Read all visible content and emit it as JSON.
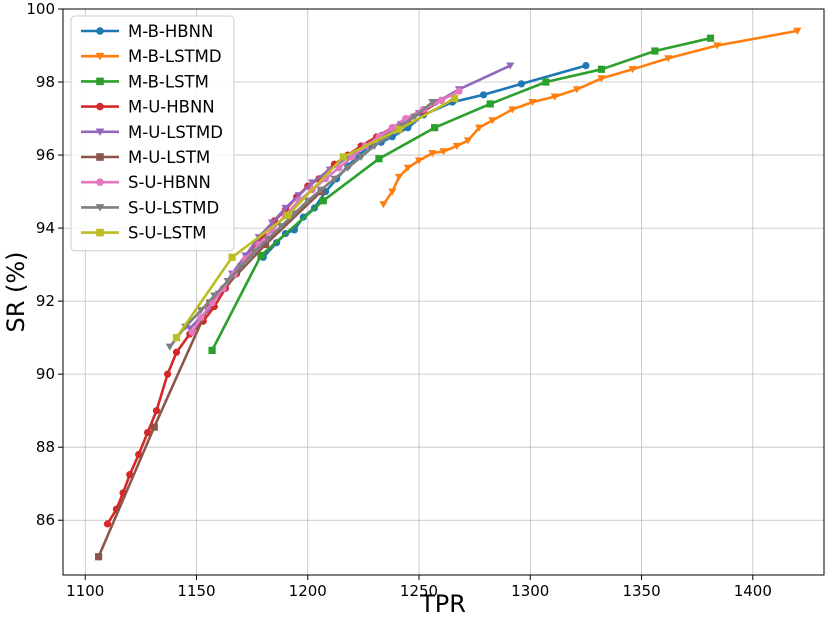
{
  "chart_data": {
    "type": "line",
    "xlabel": "TPR",
    "ylabel": "SR (%)",
    "xlim": [
      1090,
      1432
    ],
    "ylim": [
      84.5,
      100
    ],
    "xticks": [
      1100,
      1150,
      1200,
      1250,
      1300,
      1350,
      1400
    ],
    "yticks": [
      86,
      88,
      90,
      92,
      94,
      96,
      98,
      100
    ],
    "grid": true,
    "legend_position": "top-left",
    "series": [
      {
        "name": "M-B-HBNN",
        "color": "#1f77b4",
        "marker": "circle",
        "x": [
          1180,
          1186,
          1190,
          1194,
          1198,
          1203,
          1208,
          1213,
          1218,
          1223,
          1228,
          1233,
          1238,
          1245,
          1252,
          1265,
          1279,
          1296,
          1325
        ],
        "y": [
          93.2,
          93.6,
          93.85,
          93.95,
          94.3,
          94.55,
          95.0,
          95.35,
          95.7,
          96.0,
          96.25,
          96.35,
          96.5,
          96.75,
          97.1,
          97.45,
          97.65,
          97.95,
          98.45
        ]
      },
      {
        "name": "M-B-LSTMD",
        "color": "#ff7f0e",
        "marker": "triangle-down",
        "x": [
          1234,
          1238,
          1241,
          1245,
          1250,
          1256,
          1261,
          1267,
          1272,
          1277,
          1283,
          1292,
          1301,
          1311,
          1321,
          1332,
          1346,
          1362,
          1384,
          1420
        ],
        "y": [
          94.65,
          95.0,
          95.4,
          95.65,
          95.85,
          96.05,
          96.1,
          96.25,
          96.4,
          96.75,
          96.95,
          97.25,
          97.45,
          97.6,
          97.8,
          98.1,
          98.35,
          98.65,
          99.0,
          99.4
        ]
      },
      {
        "name": "M-B-LSTM",
        "color": "#2ca02c",
        "marker": "square",
        "x": [
          1157,
          1179,
          1207,
          1232,
          1257,
          1282,
          1307,
          1332,
          1356,
          1381
        ],
        "y": [
          90.65,
          93.25,
          94.75,
          95.9,
          96.75,
          97.4,
          98.0,
          98.35,
          98.85,
          99.2
        ]
      },
      {
        "name": "M-U-HBNN",
        "color": "#d62728",
        "marker": "circle",
        "x": [
          1110,
          1114,
          1117,
          1120,
          1124,
          1128,
          1132,
          1137,
          1141,
          1147,
          1153,
          1158,
          1163,
          1168,
          1174,
          1180,
          1185,
          1190,
          1195,
          1200,
          1205,
          1212,
          1218,
          1224,
          1231,
          1238,
          1245,
          1252,
          1260
        ],
        "y": [
          85.9,
          86.3,
          86.75,
          87.25,
          87.8,
          88.4,
          89.0,
          90.0,
          90.6,
          91.1,
          91.45,
          91.85,
          92.35,
          92.75,
          93.3,
          93.8,
          94.2,
          94.5,
          94.85,
          95.15,
          95.35,
          95.75,
          96.0,
          96.25,
          96.5,
          96.75,
          96.95,
          97.2,
          97.5
        ]
      },
      {
        "name": "M-U-LSTMD",
        "color": "#9467bd",
        "marker": "triangle-down",
        "x": [
          1147,
          1155,
          1160,
          1166,
          1172,
          1178,
          1184,
          1190,
          1196,
          1202,
          1210,
          1218,
          1226,
          1234,
          1242,
          1250,
          1258,
          1268,
          1291
        ],
        "y": [
          91.25,
          91.75,
          92.2,
          92.75,
          93.25,
          93.75,
          94.15,
          94.55,
          94.9,
          95.25,
          95.6,
          95.95,
          96.25,
          96.55,
          96.85,
          97.15,
          97.45,
          97.8,
          98.45
        ]
      },
      {
        "name": "M-U-LSTM",
        "color": "#8c564b",
        "marker": "square",
        "x": [
          1106,
          1131,
          1156,
          1181,
          1206
        ],
        "y": [
          85.0,
          88.55,
          91.95,
          93.55,
          95.0
        ]
      },
      {
        "name": "S-U-HBNN",
        "color": "#e377c2",
        "marker": "circle",
        "x": [
          1148,
          1152,
          1157,
          1162,
          1167,
          1172,
          1178,
          1184,
          1190,
          1196,
          1202,
          1208,
          1214,
          1220,
          1226,
          1232,
          1238,
          1244,
          1252,
          1260,
          1268
        ],
        "y": [
          91.15,
          91.55,
          91.95,
          92.35,
          92.75,
          93.15,
          93.55,
          93.95,
          94.35,
          94.75,
          95.05,
          95.35,
          95.65,
          95.95,
          96.25,
          96.5,
          96.75,
          97.0,
          97.25,
          97.5,
          97.75
        ]
      },
      {
        "name": "S-U-LSTMD",
        "color": "#7f7f7f",
        "marker": "triangle-down",
        "x": [
          1138,
          1145,
          1152,
          1158,
          1164,
          1170,
          1176,
          1182,
          1188,
          1194,
          1200,
          1206,
          1212,
          1218,
          1224,
          1230,
          1236,
          1242,
          1248,
          1256
        ],
        "y": [
          90.75,
          91.3,
          91.75,
          92.15,
          92.55,
          92.95,
          93.35,
          93.7,
          94.05,
          94.4,
          94.75,
          95.05,
          95.35,
          95.65,
          95.95,
          96.25,
          96.5,
          96.8,
          97.05,
          97.45
        ]
      },
      {
        "name": "S-U-LSTM",
        "color": "#bcbd22",
        "marker": "square",
        "x": [
          1141,
          1166,
          1191,
          1216,
          1241,
          1266
        ],
        "y": [
          91.0,
          93.2,
          94.35,
          95.95,
          96.7,
          97.55
        ]
      }
    ]
  }
}
